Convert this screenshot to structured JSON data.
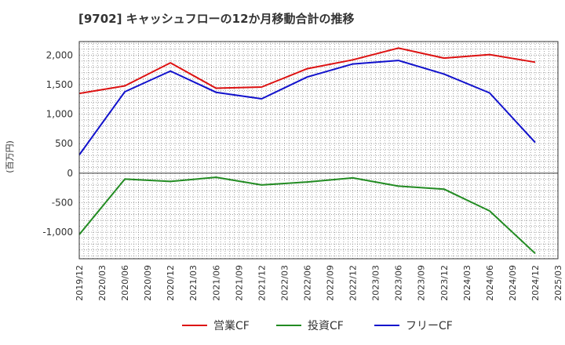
{
  "chart_data": {
    "type": "line",
    "title": "[9702]  キャッシュフローの12か月移動合計の推移",
    "xlabel": "",
    "ylabel": "(百万円)",
    "categories": [
      "2019/12",
      "2020/03",
      "2020/06",
      "2020/09",
      "2020/12",
      "2021/03",
      "2021/06",
      "2021/09",
      "2021/12",
      "2022/03",
      "2022/06",
      "2022/09",
      "2022/12",
      "2023/03",
      "2023/06",
      "2023/09",
      "2023/12",
      "2024/03",
      "2024/06",
      "2024/09",
      "2024/12",
      "2025/03"
    ],
    "ylim": [
      -1450,
      2230
    ],
    "yticks": [
      2000,
      1500,
      1000,
      500,
      0,
      -500,
      -1000
    ],
    "ytick_labels": [
      "2,000",
      "1,500",
      "1,000",
      "500",
      "0",
      "-500",
      "-1,000"
    ],
    "grid": true,
    "legend_position": "bottom",
    "series": [
      {
        "name": "営業CF",
        "color": "#dd1111",
        "points": [
          [
            0,
            1350
          ],
          [
            2,
            1480
          ],
          [
            4,
            1870
          ],
          [
            6,
            1440
          ],
          [
            8,
            1460
          ],
          [
            10,
            1770
          ],
          [
            12,
            1920
          ],
          [
            14,
            2120
          ],
          [
            16,
            1950
          ],
          [
            18,
            2010
          ],
          [
            20,
            1880
          ]
        ]
      },
      {
        "name": "投資CF",
        "color": "#228b22",
        "points": [
          [
            0,
            -1040
          ],
          [
            2,
            -100
          ],
          [
            4,
            -140
          ],
          [
            6,
            -70
          ],
          [
            8,
            -200
          ],
          [
            10,
            -150
          ],
          [
            12,
            -80
          ],
          [
            14,
            -220
          ],
          [
            16,
            -270
          ],
          [
            18,
            -640
          ],
          [
            20,
            -1360
          ]
        ]
      },
      {
        "name": "フリーCF",
        "color": "#1111cc",
        "points": [
          [
            0,
            310
          ],
          [
            2,
            1380
          ],
          [
            4,
            1730
          ],
          [
            6,
            1370
          ],
          [
            8,
            1260
          ],
          [
            10,
            1630
          ],
          [
            12,
            1850
          ],
          [
            14,
            1910
          ],
          [
            16,
            1680
          ],
          [
            18,
            1360
          ],
          [
            20,
            520
          ]
        ]
      }
    ]
  }
}
